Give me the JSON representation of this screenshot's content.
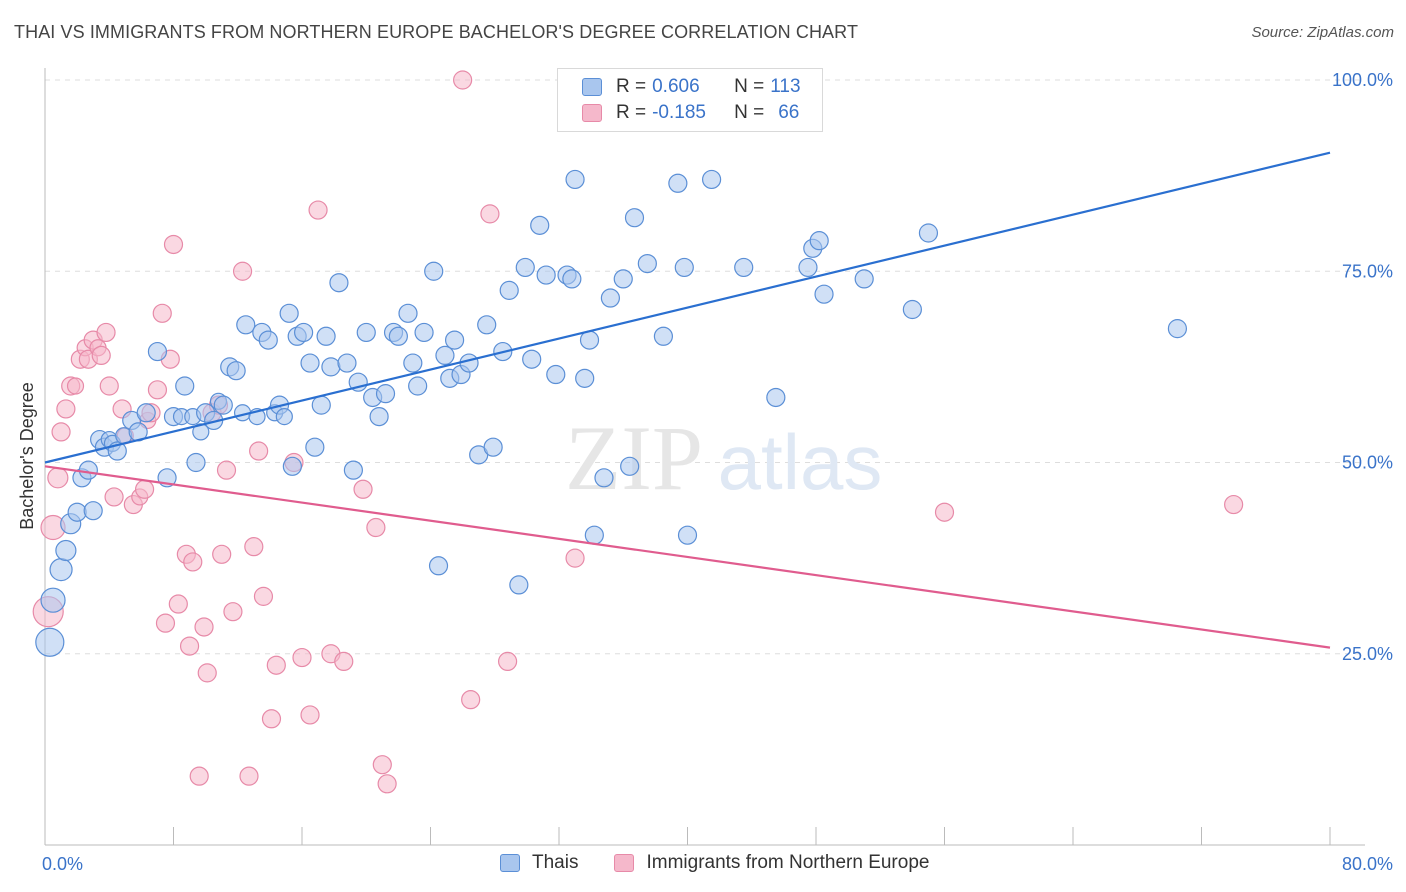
{
  "title": "THAI VS IMMIGRANTS FROM NORTHERN EUROPE BACHELOR'S DEGREE CORRELATION CHART",
  "source": "Source: ZipAtlas.com",
  "watermark": {
    "zip": "ZIP",
    "atlas": "atlas"
  },
  "colors": {
    "blue_fill": "#a9c6ee",
    "blue_stroke": "#5b8fd6",
    "blue_line": "#2a6fd0",
    "pink_fill": "#f5b8cb",
    "pink_stroke": "#e78aa8",
    "pink_line": "#e05c8e",
    "axis_text": "#3a73c9",
    "grid": "#dddddd"
  },
  "legend_top": [
    {
      "r_label": "R =",
      "r_value": "0.606",
      "n_label": "N =",
      "n_value": "113",
      "color": "#a9c6ee"
    },
    {
      "r_label": "R =",
      "r_value": "-0.185",
      "n_label": "N =",
      "n_value": "66",
      "color": "#f5b8cb"
    }
  ],
  "legend_bottom": [
    {
      "label": "Thais",
      "color": "#a9c6ee"
    },
    {
      "label": "Immigrants from Northern Europe",
      "color": "#f5b8cb"
    }
  ],
  "chart_data": {
    "type": "scatter",
    "title": "THAI VS IMMIGRANTS FROM NORTHERN EUROPE BACHELOR'S DEGREE CORRELATION CHART",
    "xlabel": "",
    "ylabel": "Bachelor's Degree",
    "xlim": [
      0,
      80
    ],
    "ylim": [
      0,
      105
    ],
    "x_tick_labels": [
      "0.0%",
      "80.0%"
    ],
    "y_ticks": [
      25,
      50,
      75,
      100
    ],
    "y_tick_labels": [
      "25.0%",
      "50.0%",
      "75.0%",
      "100.0%"
    ],
    "grid": "horizontal dashed",
    "series": [
      {
        "name": "Thais",
        "trend": {
          "x": [
            0,
            80
          ],
          "y": [
            50,
            90.5
          ]
        },
        "points": [
          [
            0.3,
            26.5,
            14
          ],
          [
            0.5,
            32,
            12
          ],
          [
            1.0,
            36,
            11
          ],
          [
            1.3,
            38.5,
            10
          ],
          [
            1.6,
            42,
            10
          ],
          [
            2.0,
            43.5,
            9
          ],
          [
            2.3,
            48,
            9
          ],
          [
            2.7,
            49,
            9
          ],
          [
            3.0,
            43.7,
            9
          ],
          [
            3.4,
            53,
            9
          ],
          [
            3.7,
            52,
            9
          ],
          [
            4.0,
            53,
            8
          ],
          [
            4.2,
            52.5,
            8
          ],
          [
            4.5,
            51.5,
            9
          ],
          [
            4.9,
            53.5,
            8
          ],
          [
            5.4,
            55.5,
            9
          ],
          [
            5.8,
            54,
            9
          ],
          [
            6.3,
            56.5,
            9
          ],
          [
            7.0,
            64.5,
            9
          ],
          [
            7.6,
            48,
            9
          ],
          [
            8.0,
            56,
            9
          ],
          [
            8.5,
            56,
            8
          ],
          [
            8.7,
            60,
            9
          ],
          [
            9.2,
            56,
            8
          ],
          [
            9.4,
            50,
            9
          ],
          [
            9.7,
            54,
            8
          ],
          [
            10.0,
            56.5,
            9
          ],
          [
            10.5,
            55.5,
            9
          ],
          [
            10.8,
            58,
            8
          ],
          [
            11.1,
            57.5,
            9
          ],
          [
            11.5,
            62.5,
            9
          ],
          [
            11.9,
            62,
            9
          ],
          [
            12.3,
            56.5,
            8
          ],
          [
            12.5,
            68,
            9
          ],
          [
            13.2,
            56,
            8
          ],
          [
            13.5,
            67,
            9
          ],
          [
            13.9,
            66,
            9
          ],
          [
            14.3,
            56.5,
            8
          ],
          [
            14.6,
            57.5,
            9
          ],
          [
            14.9,
            56,
            8
          ],
          [
            15.2,
            69.5,
            9
          ],
          [
            15.4,
            49.5,
            9
          ],
          [
            15.7,
            66.5,
            9
          ],
          [
            16.1,
            67,
            9
          ],
          [
            16.5,
            63,
            9
          ],
          [
            16.8,
            52,
            9
          ],
          [
            17.2,
            57.5,
            9
          ],
          [
            17.5,
            66.5,
            9
          ],
          [
            17.8,
            62.5,
            9
          ],
          [
            18.3,
            73.5,
            9
          ],
          [
            18.8,
            63,
            9
          ],
          [
            19.2,
            49,
            9
          ],
          [
            19.5,
            60.5,
            9
          ],
          [
            20.0,
            67,
            9
          ],
          [
            20.4,
            58.5,
            9
          ],
          [
            20.8,
            56,
            9
          ],
          [
            21.2,
            59,
            9
          ],
          [
            21.7,
            67,
            9
          ],
          [
            22.0,
            66.5,
            9
          ],
          [
            22.6,
            69.5,
            9
          ],
          [
            22.9,
            63,
            9
          ],
          [
            23.2,
            60,
            9
          ],
          [
            23.6,
            67,
            9
          ],
          [
            24.2,
            75,
            9
          ],
          [
            24.5,
            36.5,
            9
          ],
          [
            24.9,
            64,
            9
          ],
          [
            25.2,
            61,
            9
          ],
          [
            25.5,
            66,
            9
          ],
          [
            25.9,
            61.5,
            9
          ],
          [
            26.4,
            63,
            9
          ],
          [
            27.0,
            51,
            9
          ],
          [
            27.5,
            68,
            9
          ],
          [
            27.9,
            52,
            9
          ],
          [
            28.5,
            64.5,
            9
          ],
          [
            28.9,
            72.5,
            9
          ],
          [
            29.5,
            34,
            9
          ],
          [
            29.9,
            75.5,
            9
          ],
          [
            30.3,
            63.5,
            9
          ],
          [
            30.8,
            81,
            9
          ],
          [
            31.2,
            74.5,
            9
          ],
          [
            31.8,
            61.5,
            9
          ],
          [
            32.5,
            74.5,
            9
          ],
          [
            32.8,
            74,
            9
          ],
          [
            33.0,
            87,
            9
          ],
          [
            33.6,
            61,
            9
          ],
          [
            33.9,
            66,
            9
          ],
          [
            34.2,
            40.5,
            9
          ],
          [
            34.8,
            48,
            9
          ],
          [
            35.2,
            71.5,
            9
          ],
          [
            36.0,
            74,
            9
          ],
          [
            36.4,
            49.5,
            9
          ],
          [
            36.7,
            82,
            9
          ],
          [
            37.5,
            76,
            9
          ],
          [
            38.5,
            66.5,
            9
          ],
          [
            39.4,
            86.5,
            9
          ],
          [
            39.8,
            75.5,
            9
          ],
          [
            40.0,
            40.5,
            9
          ],
          [
            41.5,
            87,
            9
          ],
          [
            43.5,
            75.5,
            9
          ],
          [
            45.5,
            58.5,
            9
          ],
          [
            47.5,
            75.5,
            9
          ],
          [
            47.8,
            78,
            9
          ],
          [
            48.2,
            79,
            9
          ],
          [
            48.5,
            72,
            9
          ],
          [
            51.0,
            74,
            9
          ],
          [
            54.0,
            70,
            9
          ],
          [
            55.0,
            80,
            9
          ],
          [
            70.5,
            67.5,
            9
          ]
        ]
      },
      {
        "name": "Immigrants from Northern Europe",
        "trend": {
          "x": [
            0,
            80
          ],
          "y": [
            49.5,
            25.8
          ]
        },
        "points": [
          [
            0.2,
            30.5,
            15
          ],
          [
            0.5,
            41.5,
            12
          ],
          [
            0.8,
            48,
            10
          ],
          [
            1.0,
            54,
            9
          ],
          [
            1.3,
            57,
            9
          ],
          [
            1.6,
            60,
            9
          ],
          [
            1.9,
            60,
            8
          ],
          [
            2.2,
            63.5,
            9
          ],
          [
            2.5,
            65,
            8
          ],
          [
            2.7,
            63.5,
            9
          ],
          [
            3.0,
            66,
            9
          ],
          [
            3.3,
            65,
            8
          ],
          [
            3.5,
            64,
            9
          ],
          [
            3.8,
            67,
            9
          ],
          [
            4.0,
            60,
            9
          ],
          [
            4.3,
            45.5,
            9
          ],
          [
            4.8,
            57,
            9
          ],
          [
            5.0,
            53.5,
            8
          ],
          [
            5.5,
            44.5,
            9
          ],
          [
            5.9,
            45.5,
            8
          ],
          [
            6.2,
            46.5,
            9
          ],
          [
            6.4,
            55.5,
            8
          ],
          [
            6.6,
            56.5,
            9
          ],
          [
            7.0,
            59.5,
            9
          ],
          [
            7.3,
            69.5,
            9
          ],
          [
            7.5,
            29,
            9
          ],
          [
            7.8,
            63.5,
            9
          ],
          [
            8.0,
            78.5,
            9
          ],
          [
            8.3,
            31.5,
            9
          ],
          [
            8.8,
            38,
            9
          ],
          [
            9.0,
            26,
            9
          ],
          [
            9.2,
            37,
            9
          ],
          [
            9.6,
            9,
            9
          ],
          [
            9.9,
            28.5,
            9
          ],
          [
            10.1,
            22.5,
            9
          ],
          [
            10.4,
            56.5,
            9
          ],
          [
            10.8,
            57.5,
            9
          ],
          [
            11.0,
            38,
            9
          ],
          [
            11.3,
            49,
            9
          ],
          [
            11.7,
            30.5,
            9
          ],
          [
            12.3,
            75,
            9
          ],
          [
            12.7,
            9,
            9
          ],
          [
            13.0,
            39,
            9
          ],
          [
            13.3,
            51.5,
            9
          ],
          [
            13.6,
            32.5,
            9
          ],
          [
            14.1,
            16.5,
            9
          ],
          [
            14.4,
            23.5,
            9
          ],
          [
            15.5,
            50,
            9
          ],
          [
            16.0,
            24.5,
            9
          ],
          [
            16.5,
            17,
            9
          ],
          [
            17.0,
            83,
            9
          ],
          [
            17.8,
            25,
            9
          ],
          [
            18.6,
            24,
            9
          ],
          [
            19.8,
            46.5,
            9
          ],
          [
            20.6,
            41.5,
            9
          ],
          [
            21.0,
            10.5,
            9
          ],
          [
            21.3,
            8,
            9
          ],
          [
            26.0,
            100,
            9
          ],
          [
            26.5,
            19,
            9
          ],
          [
            27.7,
            82.5,
            9
          ],
          [
            28.8,
            24,
            9
          ],
          [
            33.0,
            37.5,
            9
          ],
          [
            56.0,
            43.5,
            9
          ],
          [
            74.0,
            44.5,
            9
          ]
        ]
      }
    ]
  }
}
